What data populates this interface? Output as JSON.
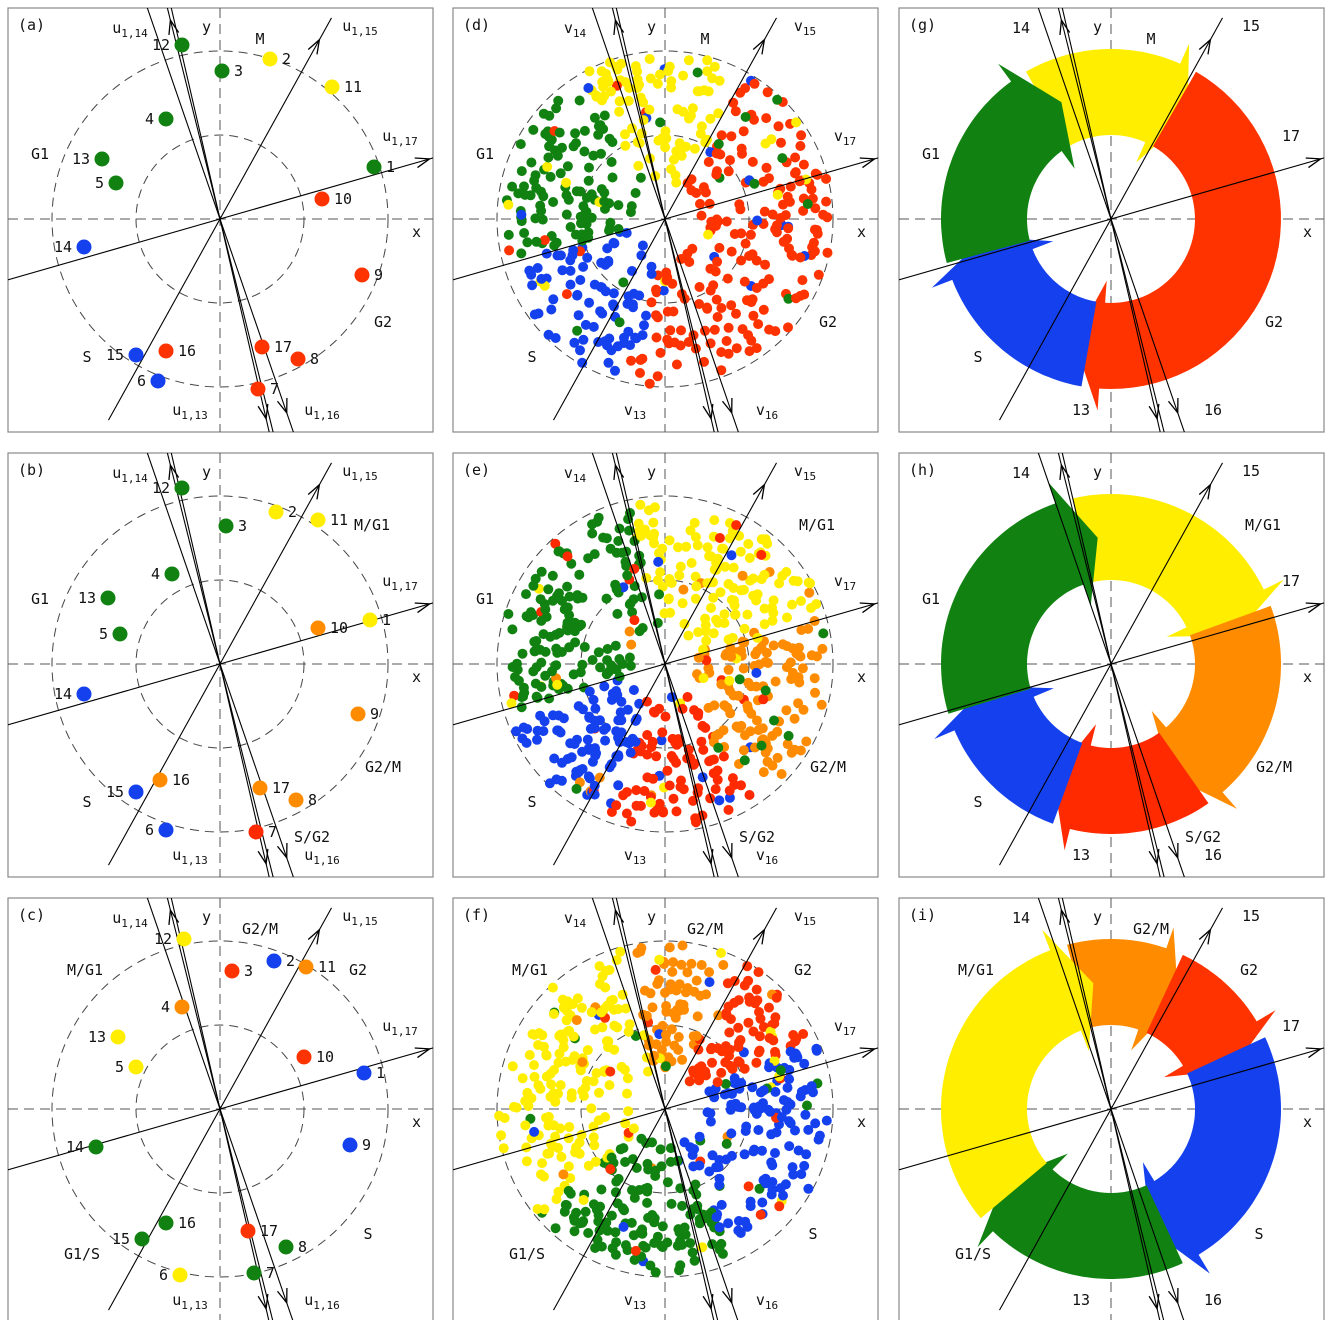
{
  "colors": {
    "G1": "#118211",
    "S": "#1540ee",
    "G2": "#ff3300",
    "M": "#ffee00",
    "G2/M": "#ff8c00",
    "S/G2": "#ff2a00",
    "M/G1": "#ffee00",
    "G1/S": "#118211"
  },
  "axis_labels": {
    "x": "x",
    "y": "y"
  },
  "rows": [
    {
      "phase_labels": [
        {
          "text": "M",
          "key": "M",
          "pos": "top"
        },
        {
          "text": "G1",
          "key": "G1",
          "pos": "left"
        },
        {
          "text": "G2",
          "key": "G2",
          "pos": "right"
        },
        {
          "text": "S",
          "key": "S",
          "pos": "bottomleft"
        }
      ],
      "points": [
        {
          "id": "1",
          "x": 0.77,
          "y": 0.26,
          "phase": "G1"
        },
        {
          "id": "2",
          "x": 0.25,
          "y": 0.8,
          "phase": "M"
        },
        {
          "id": "3",
          "x": 0.01,
          "y": 0.74,
          "phase": "G1"
        },
        {
          "id": "4",
          "x": -0.27,
          "y": 0.5,
          "phase": "G1"
        },
        {
          "id": "5",
          "x": -0.52,
          "y": 0.18,
          "phase": "G1"
        },
        {
          "id": "6",
          "x": -0.31,
          "y": -0.81,
          "phase": "S"
        },
        {
          "id": "7",
          "x": 0.19,
          "y": -0.85,
          "phase": "G2"
        },
        {
          "id": "8",
          "x": 0.39,
          "y": -0.7,
          "phase": "G2"
        },
        {
          "id": "9",
          "x": 0.71,
          "y": -0.28,
          "phase": "G2"
        },
        {
          "id": "10",
          "x": 0.51,
          "y": 0.1,
          "phase": "G2"
        },
        {
          "id": "11",
          "x": 0.56,
          "y": 0.66,
          "phase": "M"
        },
        {
          "id": "12",
          "x": -0.19,
          "y": 0.87,
          "phase": "G1"
        },
        {
          "id": "13",
          "x": -0.59,
          "y": 0.3,
          "phase": "G1"
        },
        {
          "id": "14",
          "x": -0.68,
          "y": -0.14,
          "phase": "S"
        },
        {
          "id": "15",
          "x": -0.42,
          "y": -0.68,
          "phase": "S"
        },
        {
          "id": "16",
          "x": -0.27,
          "y": -0.66,
          "phase": "G2"
        },
        {
          "id": "17",
          "x": 0.21,
          "y": -0.64,
          "phase": "G2"
        }
      ],
      "cycle_segments": [
        {
          "key": "M",
          "start": 120,
          "end": 60
        },
        {
          "key": "G2",
          "start": 60,
          "end": -100
        },
        {
          "key": "S",
          "start": -100,
          "end": -165
        },
        {
          "key": "G1",
          "start": -165,
          "end": -240
        }
      ]
    },
    {
      "phase_labels": [
        {
          "text": "M/G1",
          "key": "M/G1",
          "pos": "topright"
        },
        {
          "text": "G1",
          "key": "G1",
          "pos": "left"
        },
        {
          "text": "G2/M",
          "key": "G2/M",
          "pos": "right"
        },
        {
          "text": "S/G2",
          "key": "S/G2",
          "pos": "bottomright"
        },
        {
          "text": "S",
          "key": "S",
          "pos": "bottomleft"
        }
      ],
      "points": [
        {
          "id": "1",
          "x": 0.75,
          "y": 0.22,
          "phase": "M/G1"
        },
        {
          "id": "2",
          "x": 0.28,
          "y": 0.76,
          "phase": "M/G1"
        },
        {
          "id": "3",
          "x": 0.03,
          "y": 0.69,
          "phase": "G1"
        },
        {
          "id": "4",
          "x": -0.24,
          "y": 0.45,
          "phase": "G1"
        },
        {
          "id": "5",
          "x": -0.5,
          "y": 0.15,
          "phase": "G1"
        },
        {
          "id": "6",
          "x": -0.27,
          "y": -0.83,
          "phase": "S"
        },
        {
          "id": "7",
          "x": 0.18,
          "y": -0.84,
          "phase": "S/G2"
        },
        {
          "id": "8",
          "x": 0.38,
          "y": -0.68,
          "phase": "G2/M"
        },
        {
          "id": "9",
          "x": 0.69,
          "y": -0.25,
          "phase": "G2/M"
        },
        {
          "id": "10",
          "x": 0.49,
          "y": 0.18,
          "phase": "G2/M"
        },
        {
          "id": "11",
          "x": 0.49,
          "y": 0.72,
          "phase": "M/G1"
        },
        {
          "id": "12",
          "x": -0.19,
          "y": 0.88,
          "phase": "G1"
        },
        {
          "id": "13",
          "x": -0.56,
          "y": 0.33,
          "phase": "G1"
        },
        {
          "id": "14",
          "x": -0.68,
          "y": -0.15,
          "phase": "S"
        },
        {
          "id": "15",
          "x": -0.42,
          "y": -0.64,
          "phase": "S"
        },
        {
          "id": "16",
          "x": -0.3,
          "y": -0.58,
          "phase": "G2/M"
        },
        {
          "id": "17",
          "x": 0.2,
          "y": -0.62,
          "phase": "G2/M"
        }
      ],
      "cycle_segments": [
        {
          "key": "M/G1",
          "start": 103,
          "end": 20
        },
        {
          "key": "G2/M",
          "start": 20,
          "end": -55
        },
        {
          "key": "S/G2",
          "start": -55,
          "end": -110
        },
        {
          "key": "S",
          "start": -110,
          "end": -163
        },
        {
          "key": "G1",
          "start": -163,
          "end": -257
        }
      ]
    },
    {
      "phase_labels": [
        {
          "text": "G2/M",
          "key": "G2/M",
          "pos": "top"
        },
        {
          "text": "G2",
          "key": "G2",
          "pos": "topright2"
        },
        {
          "text": "M/G1",
          "key": "M/G1",
          "pos": "topleft"
        },
        {
          "text": "S",
          "key": "S",
          "pos": "right2"
        },
        {
          "text": "G1/S",
          "key": "G1/S",
          "pos": "bottomleft2"
        }
      ],
      "points": [
        {
          "id": "1",
          "x": 0.72,
          "y": 0.18,
          "phase": "S"
        },
        {
          "id": "2",
          "x": 0.27,
          "y": 0.74,
          "phase": "S"
        },
        {
          "id": "3",
          "x": 0.06,
          "y": 0.69,
          "phase": "G2"
        },
        {
          "id": "4",
          "x": -0.19,
          "y": 0.51,
          "phase": "G2/M"
        },
        {
          "id": "5",
          "x": -0.42,
          "y": 0.21,
          "phase": "M/G1"
        },
        {
          "id": "6",
          "x": -0.2,
          "y": -0.83,
          "phase": "M/G1"
        },
        {
          "id": "7",
          "x": 0.17,
          "y": -0.82,
          "phase": "G1/S"
        },
        {
          "id": "8",
          "x": 0.33,
          "y": -0.69,
          "phase": "G1/S"
        },
        {
          "id": "9",
          "x": 0.65,
          "y": -0.18,
          "phase": "S"
        },
        {
          "id": "10",
          "x": 0.42,
          "y": 0.26,
          "phase": "G2"
        },
        {
          "id": "11",
          "x": 0.43,
          "y": 0.71,
          "phase": "G2/M"
        },
        {
          "id": "12",
          "x": -0.18,
          "y": 0.85,
          "phase": "M/G1"
        },
        {
          "id": "13",
          "x": -0.51,
          "y": 0.36,
          "phase": "M/G1"
        },
        {
          "id": "14",
          "x": -0.62,
          "y": -0.19,
          "phase": "G1/S"
        },
        {
          "id": "15",
          "x": -0.39,
          "y": -0.65,
          "phase": "G1/S"
        },
        {
          "id": "16",
          "x": -0.27,
          "y": -0.57,
          "phase": "G1/S"
        },
        {
          "id": "17",
          "x": 0.14,
          "y": -0.61,
          "phase": "G2"
        }
      ],
      "cycle_segments": [
        {
          "key": "G2/M",
          "start": 105,
          "end": 65
        },
        {
          "key": "G2",
          "start": 65,
          "end": 25
        },
        {
          "key": "S",
          "start": 25,
          "end": -65
        },
        {
          "key": "G1/S",
          "start": -65,
          "end": -140
        },
        {
          "key": "M/G1",
          "start": -140,
          "end": -255
        }
      ]
    }
  ],
  "panels": [
    {
      "id": "(a)",
      "type": "samples",
      "row": 0,
      "col": 0,
      "rays": [
        {
          "name": "u",
          "sub": "1,13",
          "angle": -77
        },
        {
          "name": "u",
          "sub": "1,14",
          "angle": 104
        },
        {
          "name": "u",
          "sub": "1,15",
          "angle": 61
        },
        {
          "name": "u",
          "sub": "1,16",
          "angle": -71
        },
        {
          "name": "u",
          "sub": "1,17",
          "angle": 16
        }
      ]
    },
    {
      "id": "(d)",
      "type": "scatter",
      "row": 0,
      "col": 1,
      "rays": [
        {
          "name": "v",
          "sub": "13",
          "angle": -77
        },
        {
          "name": "v",
          "sub": "14",
          "angle": 104
        },
        {
          "name": "v",
          "sub": "15",
          "angle": 61
        },
        {
          "name": "v",
          "sub": "16",
          "angle": -71
        },
        {
          "name": "v",
          "sub": "17",
          "angle": 16
        }
      ]
    },
    {
      "id": "(g)",
      "type": "cycle",
      "row": 0,
      "col": 2,
      "rays": [
        {
          "name": "",
          "sub": "",
          "label": "13",
          "angle": -77
        },
        {
          "name": "",
          "sub": "",
          "label": "14",
          "angle": 104
        },
        {
          "name": "",
          "sub": "",
          "label": "15",
          "angle": 61
        },
        {
          "name": "",
          "sub": "",
          "label": "16",
          "angle": -71
        },
        {
          "name": "",
          "sub": "",
          "label": "17",
          "angle": 16
        }
      ]
    },
    {
      "id": "(b)",
      "type": "samples",
      "row": 1,
      "col": 0,
      "rays": [
        {
          "name": "u",
          "sub": "1,13",
          "angle": -77
        },
        {
          "name": "u",
          "sub": "1,14",
          "angle": 104
        },
        {
          "name": "u",
          "sub": "1,15",
          "angle": 61
        },
        {
          "name": "u",
          "sub": "1,16",
          "angle": -71
        },
        {
          "name": "u",
          "sub": "1,17",
          "angle": 16
        }
      ]
    },
    {
      "id": "(e)",
      "type": "scatter",
      "row": 1,
      "col": 1,
      "rays": [
        {
          "name": "v",
          "sub": "13",
          "angle": -77
        },
        {
          "name": "v",
          "sub": "14",
          "angle": 104
        },
        {
          "name": "v",
          "sub": "15",
          "angle": 61
        },
        {
          "name": "v",
          "sub": "16",
          "angle": -71
        },
        {
          "name": "v",
          "sub": "17",
          "angle": 16
        }
      ]
    },
    {
      "id": "(h)",
      "type": "cycle",
      "row": 1,
      "col": 2,
      "rays": [
        {
          "name": "",
          "sub": "",
          "label": "13",
          "angle": -77
        },
        {
          "name": "",
          "sub": "",
          "label": "14",
          "angle": 104
        },
        {
          "name": "",
          "sub": "",
          "label": "15",
          "angle": 61
        },
        {
          "name": "",
          "sub": "",
          "label": "16",
          "angle": -71
        },
        {
          "name": "",
          "sub": "",
          "label": "17",
          "angle": 16
        }
      ]
    },
    {
      "id": "(c)",
      "type": "samples",
      "row": 2,
      "col": 0,
      "rays": [
        {
          "name": "u",
          "sub": "1,13",
          "angle": -77
        },
        {
          "name": "u",
          "sub": "1,14",
          "angle": 104
        },
        {
          "name": "u",
          "sub": "1,15",
          "angle": 61
        },
        {
          "name": "u",
          "sub": "1,16",
          "angle": -71
        },
        {
          "name": "u",
          "sub": "1,17",
          "angle": 16
        }
      ]
    },
    {
      "id": "(f)",
      "type": "scatter",
      "row": 2,
      "col": 1,
      "rays": [
        {
          "name": "v",
          "sub": "13",
          "angle": -77
        },
        {
          "name": "v",
          "sub": "14",
          "angle": 104
        },
        {
          "name": "v",
          "sub": "15",
          "angle": 61
        },
        {
          "name": "v",
          "sub": "16",
          "angle": -71
        },
        {
          "name": "v",
          "sub": "17",
          "angle": 16
        }
      ]
    },
    {
      "id": "(i)",
      "type": "cycle",
      "row": 2,
      "col": 2,
      "rays": [
        {
          "name": "",
          "sub": "",
          "label": "13",
          "angle": -77
        },
        {
          "name": "",
          "sub": "",
          "label": "14",
          "angle": 104
        },
        {
          "name": "",
          "sub": "",
          "label": "15",
          "angle": 61
        },
        {
          "name": "",
          "sub": "",
          "label": "16",
          "angle": -71
        },
        {
          "name": "",
          "sub": "",
          "label": "17",
          "angle": 16
        }
      ]
    }
  ]
}
